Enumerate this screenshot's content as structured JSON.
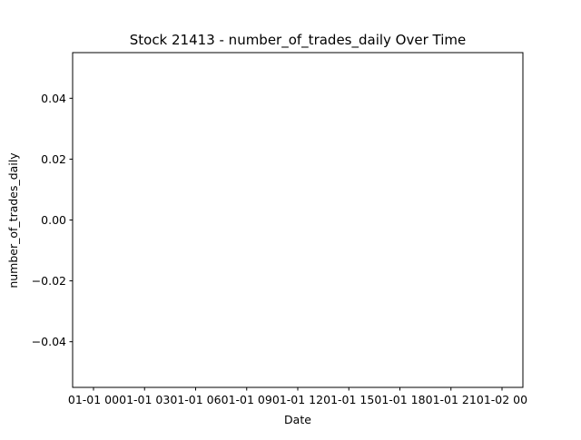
{
  "chart_data": {
    "type": "line",
    "title": "Stock 21413 - number_of_trades_daily Over Time",
    "xlabel": "Date",
    "ylabel": "number_of_trades_daily",
    "series": [],
    "x_ticks": [
      "01-01 00",
      "01-01 03",
      "01-01 06",
      "01-01 09",
      "01-01 12",
      "01-01 15",
      "01-01 18",
      "01-01 21",
      "01-02 00"
    ],
    "y_ticks": [
      "0.04",
      "0.02",
      "0.00",
      "−0.02",
      "−0.04"
    ],
    "y_tick_values": [
      0.04,
      0.02,
      0.0,
      -0.02,
      -0.04
    ],
    "ylim": [
      -0.055,
      0.055
    ],
    "grid": false,
    "legend": "none"
  }
}
